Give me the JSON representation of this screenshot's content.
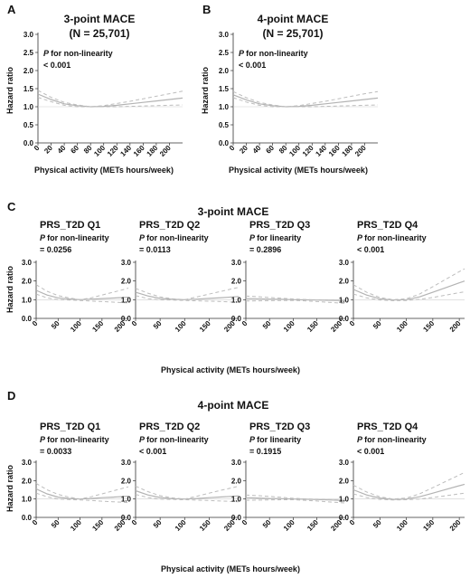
{
  "panel_letters": [
    "A",
    "B",
    "C",
    "D"
  ],
  "top": {
    "A": {
      "title": "3-point MACE",
      "n": "(N = 25,701)",
      "p_label": "for non-linearity",
      "p_value": "< 0.001"
    },
    "B": {
      "title": "4-point MACE",
      "n": "(N = 25,701)",
      "p_label": "for non-linearity",
      "p_value": "< 0.001"
    }
  },
  "C": {
    "title": "3-point MACE"
  },
  "D": {
    "title": "4-point MACE"
  },
  "p_symbol": "P",
  "xlabel": "Physical activity (METs hours/week)",
  "ylabel": "Hazard ratio",
  "colors": {
    "estimate": "#b3b3b3",
    "ci": "#bdbdbd",
    "axis": "#333333",
    "ref": "#cfcfcf"
  },
  "chart_data": [
    {
      "type": "line",
      "panel": "A",
      "title": "3-point MACE",
      "subtitle": "(N = 25,701)",
      "annotation": "P for non-linearity < 0.001",
      "xlabel": "Physical activity (METs hours/week)",
      "ylabel": "Hazard ratio",
      "xlim": [
        0,
        220
      ],
      "ylim": [
        0,
        3.0
      ],
      "xticks": [
        0,
        20,
        40,
        60,
        80,
        100,
        120,
        140,
        160,
        180,
        200
      ],
      "yticks": [
        0.0,
        0.5,
        1.0,
        1.5,
        2.0,
        2.5,
        3.0
      ],
      "x": [
        0,
        20,
        40,
        60,
        80,
        100,
        120,
        140,
        160,
        180,
        200,
        220
      ],
      "series": [
        {
          "values": [
            1.35,
            1.2,
            1.08,
            1.03,
            1.0,
            1.01,
            1.04,
            1.08,
            1.12,
            1.16,
            1.2,
            1.24
          ]
        },
        {
          "values": [
            1.45,
            1.26,
            1.12,
            1.05,
            1.0,
            1.03,
            1.09,
            1.15,
            1.22,
            1.29,
            1.36,
            1.43
          ]
        },
        {
          "values": [
            1.26,
            1.14,
            1.04,
            1.0,
            1.0,
            1.0,
            1.0,
            1.01,
            1.02,
            1.03,
            1.04,
            1.05
          ]
        }
      ]
    },
    {
      "type": "line",
      "panel": "B",
      "title": "4-point MACE",
      "subtitle": "(N = 25,701)",
      "annotation": "P for non-linearity < 0.001",
      "xlabel": "Physical activity (METs hours/week)",
      "ylabel": "Hazard ratio",
      "xlim": [
        0,
        220
      ],
      "ylim": [
        0,
        3.0
      ],
      "xticks": [
        0,
        20,
        40,
        60,
        80,
        100,
        120,
        140,
        160,
        180,
        200
      ],
      "yticks": [
        0.0,
        0.5,
        1.0,
        1.5,
        2.0,
        2.5,
        3.0
      ],
      "x": [
        0,
        20,
        40,
        60,
        80,
        100,
        120,
        140,
        160,
        180,
        200,
        220
      ],
      "series": [
        {
          "values": [
            1.33,
            1.19,
            1.08,
            1.03,
            1.0,
            1.01,
            1.04,
            1.08,
            1.12,
            1.16,
            1.2,
            1.24
          ]
        },
        {
          "values": [
            1.42,
            1.25,
            1.12,
            1.05,
            1.0,
            1.03,
            1.09,
            1.15,
            1.22,
            1.29,
            1.36,
            1.42
          ]
        },
        {
          "values": [
            1.25,
            1.13,
            1.04,
            1.0,
            1.0,
            1.0,
            1.0,
            1.01,
            1.02,
            1.03,
            1.04,
            1.05
          ]
        }
      ]
    },
    {
      "type": "line",
      "panel": "C",
      "subpanel": "PRS_T2D Q1",
      "annotation": "P for non-linearity = 0.0256",
      "xlabel": "Physical activity (METs hours/week)",
      "ylabel": "Hazard ratio",
      "xlim": [
        0,
        210
      ],
      "ylim": [
        0,
        3.0
      ],
      "xticks": [
        0,
        50,
        100,
        150,
        200
      ],
      "yticks": [
        0.0,
        1.0,
        2.0,
        3.0
      ],
      "x": [
        0,
        25,
        50,
        75,
        100,
        125,
        150,
        175,
        200,
        210
      ],
      "series": [
        {
          "values": [
            1.5,
            1.25,
            1.1,
            1.04,
            1.0,
            1.03,
            1.06,
            1.09,
            1.12,
            1.13
          ]
        },
        {
          "values": [
            1.8,
            1.45,
            1.22,
            1.1,
            1.0,
            1.1,
            1.25,
            1.4,
            1.55,
            1.62
          ]
        },
        {
          "values": [
            1.3,
            1.1,
            1.0,
            0.98,
            0.96,
            0.93,
            0.9,
            0.87,
            0.84,
            0.83
          ]
        }
      ]
    },
    {
      "type": "line",
      "panel": "C",
      "subpanel": "PRS_T2D Q2",
      "annotation": "P for non-linearity = 0.0113",
      "xlabel": "Physical activity (METs hours/week)",
      "ylabel": "Hazard ratio",
      "xlim": [
        0,
        210
      ],
      "ylim": [
        0,
        3.0
      ],
      "xticks": [
        0,
        50,
        100,
        150,
        200
      ],
      "yticks": [
        0.0,
        1.0,
        2.0,
        3.0
      ],
      "x": [
        0,
        25,
        50,
        75,
        100,
        125,
        150,
        175,
        200,
        210
      ],
      "series": [
        {
          "values": [
            1.4,
            1.2,
            1.07,
            1.02,
            1.0,
            1.03,
            1.07,
            1.11,
            1.15,
            1.17
          ]
        },
        {
          "values": [
            1.6,
            1.35,
            1.15,
            1.05,
            1.0,
            1.15,
            1.3,
            1.45,
            1.6,
            1.66
          ]
        },
        {
          "values": [
            1.22,
            1.06,
            0.99,
            0.98,
            0.96,
            0.94,
            0.92,
            0.9,
            0.87,
            0.86
          ]
        }
      ]
    },
    {
      "type": "line",
      "panel": "C",
      "subpanel": "PRS_T2D Q3",
      "annotation": "P for linearity = 0.2896",
      "xlabel": "Physical activity (METs hours/week)",
      "ylabel": "Hazard ratio",
      "xlim": [
        0,
        210
      ],
      "ylim": [
        0,
        3.0
      ],
      "xticks": [
        0,
        50,
        100,
        150,
        200
      ],
      "yticks": [
        0.0,
        1.0,
        2.0,
        3.0
      ],
      "x": [
        0,
        25,
        50,
        75,
        100,
        125,
        150,
        175,
        200,
        210
      ],
      "series": [
        {
          "values": [
            1.06,
            1.05,
            1.03,
            1.02,
            1.0,
            0.99,
            0.98,
            0.97,
            0.96,
            0.95
          ]
        },
        {
          "values": [
            1.2,
            1.16,
            1.12,
            1.08,
            1.04,
            1.01,
            0.99,
            0.97,
            0.95,
            0.94
          ]
        },
        {
          "values": [
            0.93,
            0.94,
            0.95,
            0.96,
            0.96,
            0.94,
            0.9,
            0.86,
            0.82,
            0.8
          ]
        }
      ]
    },
    {
      "type": "line",
      "panel": "C",
      "subpanel": "PRS_T2D Q4",
      "annotation": "P for non-linearity < 0.001",
      "xlabel": "Physical activity (METs hours/week)",
      "ylabel": "Hazard ratio",
      "xlim": [
        0,
        210
      ],
      "ylim": [
        0,
        3.0
      ],
      "xticks": [
        0,
        50,
        100,
        150,
        200
      ],
      "yticks": [
        0.0,
        1.0,
        2.0,
        3.0
      ],
      "x": [
        0,
        25,
        50,
        75,
        100,
        125,
        150,
        175,
        200,
        210
      ],
      "series": [
        {
          "values": [
            1.55,
            1.25,
            1.05,
            0.98,
            1.0,
            1.15,
            1.4,
            1.65,
            1.9,
            2.0
          ]
        },
        {
          "values": [
            1.8,
            1.4,
            1.12,
            1.0,
            1.05,
            1.3,
            1.7,
            2.1,
            2.5,
            2.65
          ]
        },
        {
          "values": [
            1.3,
            1.1,
            0.98,
            0.95,
            0.96,
            1.02,
            1.12,
            1.25,
            1.38,
            1.42
          ]
        }
      ]
    },
    {
      "type": "line",
      "panel": "D",
      "subpanel": "PRS_T2D Q1",
      "annotation": "P for non-linearity = 0.0033",
      "xlabel": "Physical activity (METs hours/week)",
      "ylabel": "Hazard ratio",
      "xlim": [
        0,
        210
      ],
      "ylim": [
        0,
        3.0
      ],
      "xticks": [
        0,
        50,
        100,
        150,
        200
      ],
      "yticks": [
        0.0,
        1.0,
        2.0,
        3.0
      ],
      "x": [
        0,
        25,
        50,
        75,
        100,
        125,
        150,
        175,
        200,
        210
      ],
      "series": [
        {
          "values": [
            1.55,
            1.28,
            1.1,
            1.03,
            1.0,
            1.03,
            1.07,
            1.1,
            1.14,
            1.15
          ]
        },
        {
          "values": [
            1.85,
            1.5,
            1.25,
            1.1,
            1.0,
            1.12,
            1.28,
            1.44,
            1.6,
            1.66
          ]
        },
        {
          "values": [
            1.32,
            1.12,
            1.0,
            0.97,
            0.95,
            0.92,
            0.88,
            0.85,
            0.82,
            0.8
          ]
        }
      ]
    },
    {
      "type": "line",
      "panel": "D",
      "subpanel": "PRS_T2D Q2",
      "annotation": "P for non-linearity < 0.001",
      "xlabel": "Physical activity (METs hours/week)",
      "ylabel": "Hazard ratio",
      "xlim": [
        0,
        210
      ],
      "ylim": [
        0,
        3.0
      ],
      "xticks": [
        0,
        50,
        100,
        150,
        200
      ],
      "yticks": [
        0.0,
        1.0,
        2.0,
        3.0
      ],
      "x": [
        0,
        25,
        50,
        75,
        100,
        125,
        150,
        175,
        200,
        210
      ],
      "series": [
        {
          "values": [
            1.45,
            1.22,
            1.08,
            1.02,
            1.0,
            1.03,
            1.07,
            1.11,
            1.15,
            1.17
          ]
        },
        {
          "values": [
            1.7,
            1.4,
            1.18,
            1.06,
            1.0,
            1.15,
            1.32,
            1.48,
            1.63,
            1.7
          ]
        },
        {
          "values": [
            1.25,
            1.08,
            0.99,
            0.98,
            0.96,
            0.94,
            0.92,
            0.89,
            0.86,
            0.85
          ]
        }
      ]
    },
    {
      "type": "line",
      "panel": "D",
      "subpanel": "PRS_T2D Q3",
      "annotation": "P for linearity = 0.1915",
      "xlabel": "Physical activity (METs hours/week)",
      "ylabel": "Hazard ratio",
      "xlim": [
        0,
        210
      ],
      "ylim": [
        0,
        3.0
      ],
      "xticks": [
        0,
        50,
        100,
        150,
        200
      ],
      "yticks": [
        0.0,
        1.0,
        2.0,
        3.0
      ],
      "x": [
        0,
        25,
        50,
        75,
        100,
        125,
        150,
        175,
        200,
        210
      ],
      "series": [
        {
          "values": [
            1.07,
            1.05,
            1.03,
            1.02,
            1.0,
            0.99,
            0.97,
            0.95,
            0.93,
            0.92
          ]
        },
        {
          "values": [
            1.22,
            1.18,
            1.14,
            1.09,
            1.04,
            1.01,
            0.99,
            0.97,
            0.95,
            0.94
          ]
        },
        {
          "values": [
            0.93,
            0.94,
            0.95,
            0.96,
            0.96,
            0.93,
            0.89,
            0.84,
            0.8,
            0.78
          ]
        }
      ]
    },
    {
      "type": "line",
      "panel": "D",
      "subpanel": "PRS_T2D Q4",
      "annotation": "P for non-linearity < 0.001",
      "xlabel": "Physical activity (METs hours/week)",
      "ylabel": "Hazard ratio",
      "xlim": [
        0,
        210
      ],
      "ylim": [
        0,
        3.0
      ],
      "xticks": [
        0,
        50,
        100,
        150,
        200
      ],
      "yticks": [
        0.0,
        1.0,
        2.0,
        3.0
      ],
      "x": [
        0,
        25,
        50,
        75,
        100,
        125,
        150,
        175,
        200,
        210
      ],
      "series": [
        {
          "values": [
            1.5,
            1.22,
            1.05,
            0.98,
            1.0,
            1.12,
            1.32,
            1.52,
            1.72,
            1.8
          ]
        },
        {
          "values": [
            1.75,
            1.38,
            1.12,
            1.0,
            1.05,
            1.28,
            1.62,
            1.96,
            2.3,
            2.45
          ]
        },
        {
          "values": [
            1.28,
            1.08,
            0.98,
            0.95,
            0.96,
            1.0,
            1.08,
            1.18,
            1.28,
            1.32
          ]
        }
      ]
    }
  ]
}
